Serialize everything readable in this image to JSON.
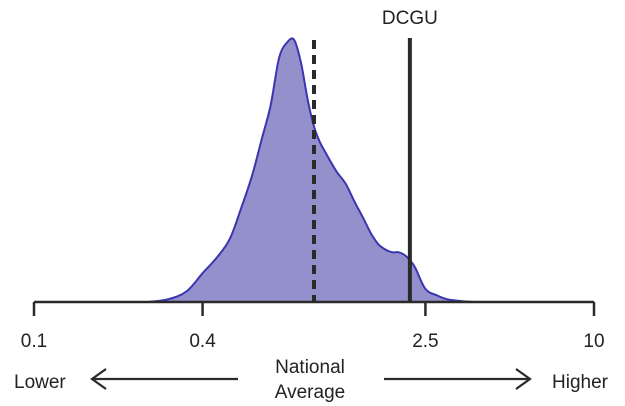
{
  "chart_data": {
    "type": "area",
    "x_scale": "log10",
    "xlim": [
      0.1,
      10
    ],
    "x_ticks": [
      0.1,
      0.4,
      2.5,
      10
    ],
    "x_tick_labels": [
      "0.1",
      "0.4",
      "2.5",
      "10"
    ],
    "grid": false,
    "fill_color": "#9490cc",
    "stroke_color": "#3a36b0",
    "density": {
      "x": [
        0.255,
        0.3,
        0.35,
        0.4,
        0.45,
        0.5,
        0.55,
        0.6,
        0.65,
        0.7,
        0.75,
        0.8,
        0.85,
        0.9,
        0.95,
        1.0,
        1.05,
        1.1,
        1.2,
        1.3,
        1.4,
        1.5,
        1.6,
        1.7,
        1.8,
        1.9,
        2.0,
        2.1,
        2.2,
        2.3,
        2.5,
        2.75,
        3.0,
        3.4,
        3.85
      ],
      "y": [
        0.0,
        0.01,
        0.04,
        0.11,
        0.17,
        0.24,
        0.36,
        0.48,
        0.62,
        0.75,
        0.93,
        0.99,
        1.0,
        0.91,
        0.77,
        0.67,
        0.61,
        0.57,
        0.5,
        0.45,
        0.38,
        0.32,
        0.26,
        0.22,
        0.2,
        0.19,
        0.19,
        0.18,
        0.16,
        0.13,
        0.05,
        0.025,
        0.01,
        0.003,
        0.0
      ]
    },
    "reference_lines": [
      {
        "value": 1.0,
        "style": "dashed",
        "label": ""
      },
      {
        "value": 2.2,
        "style": "solid",
        "label": "DCGU"
      }
    ],
    "annotations": {
      "lower": "Lower",
      "higher": "Higher",
      "center_line1": "National",
      "center_line2": "Average"
    },
    "colors": {
      "axis": "#2a2a2a",
      "reference": "#2a2a2a",
      "text": "#222222"
    }
  }
}
